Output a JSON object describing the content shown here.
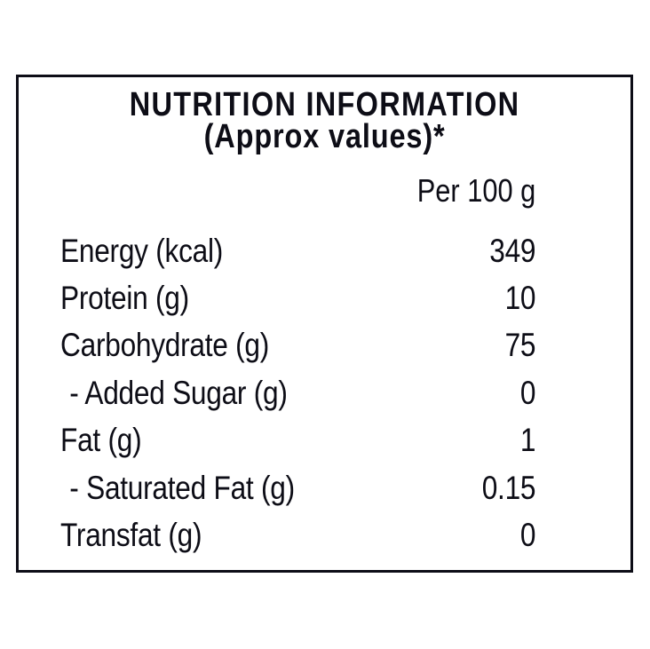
{
  "label": {
    "title": "NUTRITION INFORMATION",
    "subtitle": "(Approx values)*",
    "column_header": "Per 100 g",
    "rows": [
      {
        "name": "Energy (kcal)",
        "value": "349"
      },
      {
        "name": "Protein (g)",
        "value": "10"
      },
      {
        "name": "Carbohydrate (g)",
        "value": "75"
      },
      {
        "name": "- Added Sugar (g)",
        "value": "0"
      },
      {
        "name": "Fat (g)",
        "value": "1"
      },
      {
        "name": "- Saturated Fat (g)",
        "value": "0.15"
      },
      {
        "name": "Transfat (g)",
        "value": "0"
      }
    ],
    "colors": {
      "text": "#0d0d16",
      "border": "#0d0d16",
      "background": "#ffffff"
    }
  }
}
